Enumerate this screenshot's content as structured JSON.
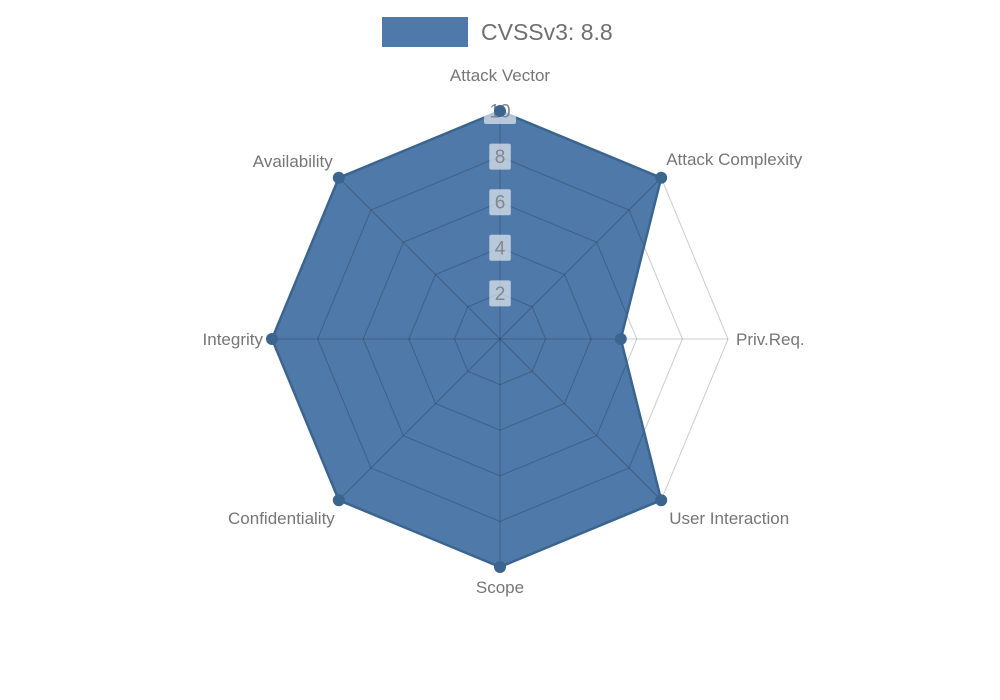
{
  "page": {
    "background": "#ffffff"
  },
  "legend": {
    "label": "CVSSv3: 8.8",
    "swatch_color": "#4f79a9"
  },
  "chart_data": {
    "type": "radar",
    "title": "CVSSv3: 8.8",
    "categories": [
      "Attack Vector",
      "Attack Complexity",
      "Priv.Req.",
      "User Interaction",
      "Scope",
      "Confidentiality",
      "Integrity",
      "Availability"
    ],
    "series": [
      {
        "name": "CVSSv3: 8.8",
        "values": [
          10,
          10,
          5.3,
          10,
          10,
          10,
          10,
          10
        ],
        "fill_color": "#4f79a9",
        "line_color": "#3b648f"
      }
    ],
    "axis_range": [
      0,
      10
    ],
    "tick_labels": [
      2,
      4,
      6,
      8,
      10
    ],
    "rings": 5,
    "grid_shape": "polygon",
    "grid_visible": true,
    "legend_position": "top-center",
    "colors": {
      "grid_line": "rgba(0,0,0,0.2)",
      "tick_box_fill": "rgba(255,255,255,0.6)",
      "tick_text": "#82868d",
      "axis_label_text": "#767676",
      "legend_text": "#6f6f6f"
    }
  }
}
